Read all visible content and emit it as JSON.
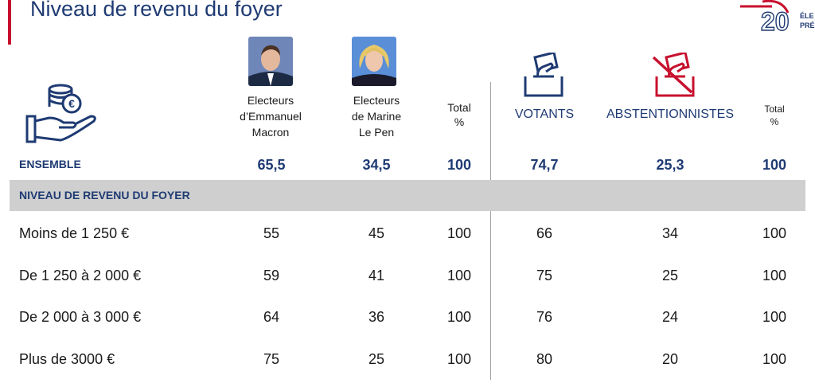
{
  "title": "Niveau de revenu du foyer",
  "logo": {
    "digits": "20",
    "text_line1": "ÉLE",
    "text_line2": "PRÉS"
  },
  "icons": [
    "money-hand-icon",
    "macron-photo",
    "lepen-photo",
    "ballot-votants-icon",
    "ballot-abstention-icon"
  ],
  "colors": {
    "accent": "#c8102e",
    "navy": "#1f3b73",
    "band": "#cfcfcf"
  },
  "chart_data": {
    "type": "table",
    "columns": [
      {
        "key": "macron",
        "lines": [
          "Electeurs",
          "d’Emmanuel",
          "Macron"
        ]
      },
      {
        "key": "lepen",
        "lines": [
          "Electeurs",
          "de Marine",
          "Le Pen"
        ]
      },
      {
        "key": "total1",
        "lines": [
          "Total",
          "%"
        ]
      },
      {
        "key": "votants",
        "lines": [
          "VOTANTS"
        ]
      },
      {
        "key": "abst",
        "lines": [
          "ABSTENTIONNISTES"
        ]
      },
      {
        "key": "total2",
        "lines": [
          "Total",
          "%"
        ]
      }
    ],
    "ensemble": {
      "label": "ENSEMBLE",
      "values": [
        "65,5",
        "34,5",
        "100",
        "74,7",
        "25,3",
        "100"
      ]
    },
    "section": "NIVEAU DE REVENU DU FOYER",
    "rows": [
      {
        "label": "Moins de 1 250 €",
        "values": [
          "55",
          "45",
          "100",
          "66",
          "34",
          "100"
        ]
      },
      {
        "label": "De 1 250 à 2 000 €",
        "values": [
          "59",
          "41",
          "100",
          "75",
          "25",
          "100"
        ]
      },
      {
        "label": "De 2 000 à 3 000 €",
        "values": [
          "64",
          "36",
          "100",
          "76",
          "24",
          "100"
        ]
      },
      {
        "label": "Plus de 3000 €",
        "values": [
          "75",
          "25",
          "100",
          "80",
          "20",
          "100"
        ]
      }
    ]
  }
}
